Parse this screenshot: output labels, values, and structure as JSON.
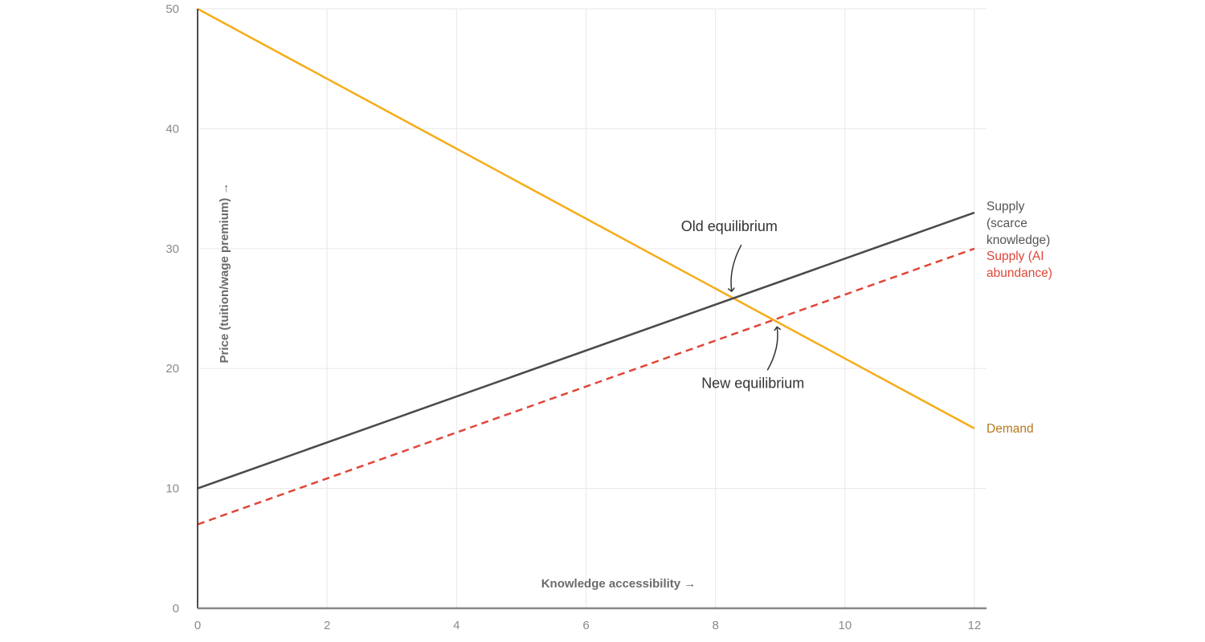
{
  "chart_data": {
    "type": "line",
    "title": "",
    "xlabel": "Knowledge accessibility →",
    "ylabel": "Price (tuition/wage premium) →",
    "xlim": [
      0,
      12
    ],
    "ylim": [
      0,
      50
    ],
    "x_ticks": [
      0,
      2,
      4,
      6,
      8,
      10,
      12
    ],
    "y_ticks": [
      0,
      10,
      20,
      30,
      40,
      50
    ],
    "grid": true,
    "series": [
      {
        "name": "Demand",
        "label_lines": [
          "Demand"
        ],
        "x": [
          0,
          12
        ],
        "y": [
          50,
          15
        ],
        "color": "#f5ac18",
        "label_color": "#b7791f",
        "dashed": false
      },
      {
        "name": "Supply (scarce knowledge)",
        "label_lines": [
          "Supply",
          "(scarce",
          "knowledge)"
        ],
        "x": [
          0,
          12
        ],
        "y": [
          10,
          33
        ],
        "color": "#4a4a4a",
        "label_color": "#555555",
        "dashed": false
      },
      {
        "name": "Supply (AI abundance)",
        "label_lines": [
          "Supply (AI",
          "abundance)"
        ],
        "x": [
          0,
          12
        ],
        "y": [
          7,
          30
        ],
        "color": "#e04638",
        "label_color": "#e04638",
        "dashed": true
      }
    ],
    "annotations": [
      {
        "text": "Old equilibrium",
        "point": [
          8.25,
          25.9
        ],
        "text_pos": "above"
      },
      {
        "text": "New equilibrium",
        "point": [
          8.95,
          24.0
        ],
        "text_pos": "below"
      }
    ]
  }
}
